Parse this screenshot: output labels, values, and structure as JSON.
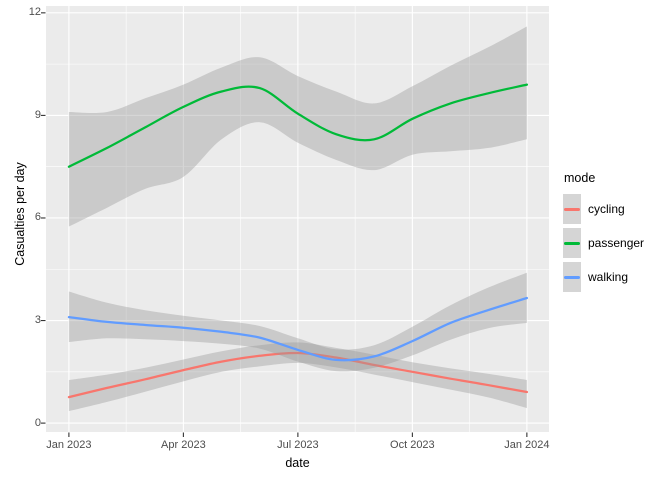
{
  "figure": {
    "background": "#FFFFFF",
    "panel_background": "#EBEBEB",
    "grid_color": "#FFFFFF",
    "tick_mark_color": "#333333",
    "tick_label_color": "#4D4D4D",
    "axis_title_color": "#000000",
    "ribbon_color": "#999999",
    "ribbon_opacity": 0.4,
    "legend_key_background": "#D5D5D5"
  },
  "chart_data": {
    "type": "line",
    "title": "",
    "xlabel": "date",
    "ylabel": "Casualties per day",
    "legend_title": "mode",
    "legend_position": "right",
    "grid": true,
    "smoothed": true,
    "confidence_band": true,
    "x_unit": "months since 2023-01-01",
    "x": [
      0,
      1,
      2,
      3,
      4,
      5,
      6,
      7,
      8,
      9,
      10,
      11,
      12
    ],
    "x_dates": [
      "2023-01",
      "2023-02",
      "2023-03",
      "2023-04",
      "2023-05",
      "2023-06",
      "2023-07",
      "2023-08",
      "2023-09",
      "2023-10",
      "2023-11",
      "2023-12",
      "2024-01"
    ],
    "x_ticks": [
      {
        "pos": 0,
        "label": "Jan 2023"
      },
      {
        "pos": 3,
        "label": "Apr 2023"
      },
      {
        "pos": 6,
        "label": "Jul 2023"
      },
      {
        "pos": 9,
        "label": "Oct 2023"
      },
      {
        "pos": 12,
        "label": "Jan 2024"
      }
    ],
    "x_minor_ticks": [
      1.5,
      4.5,
      7.5,
      10.5
    ],
    "y_ticks": [
      0,
      3,
      6,
      9,
      12
    ],
    "y_minor_ticks": [
      1.5,
      4.5,
      7.5,
      10.5
    ],
    "xlim": [
      -0.6,
      12.58
    ],
    "ylim": [
      -0.26,
      12.2
    ],
    "series": [
      {
        "name": "cycling",
        "color": "#F8766D",
        "y": [
          0.76,
          1.03,
          1.28,
          1.55,
          1.8,
          1.97,
          2.05,
          1.92,
          1.7,
          1.5,
          1.3,
          1.11,
          0.91
        ],
        "upper": [
          1.26,
          1.42,
          1.62,
          1.86,
          2.1,
          2.28,
          2.36,
          2.2,
          2.0,
          1.78,
          1.6,
          1.44,
          1.26
        ],
        "lower": [
          0.35,
          0.62,
          0.92,
          1.22,
          1.5,
          1.66,
          1.76,
          1.63,
          1.42,
          1.2,
          0.98,
          0.75,
          0.44
        ]
      },
      {
        "name": "passenger",
        "color": "#00BA38",
        "y": [
          7.5,
          8.05,
          8.65,
          9.25,
          9.7,
          9.8,
          9.05,
          8.45,
          8.3,
          8.9,
          9.35,
          9.65,
          9.9
        ],
        "upper": [
          9.1,
          9.1,
          9.5,
          9.9,
          10.4,
          10.7,
          10.15,
          9.7,
          9.35,
          9.85,
          10.45,
          11.0,
          11.6
        ],
        "lower": [
          5.75,
          6.3,
          6.85,
          7.2,
          8.3,
          8.8,
          8.2,
          7.7,
          7.4,
          7.85,
          7.95,
          8.05,
          8.3
        ]
      },
      {
        "name": "walking",
        "color": "#619CFF",
        "y": [
          3.1,
          2.96,
          2.87,
          2.79,
          2.67,
          2.5,
          2.14,
          1.85,
          1.95,
          2.4,
          2.93,
          3.31,
          3.66
        ],
        "upper": [
          3.85,
          3.52,
          3.3,
          3.14,
          3.0,
          2.84,
          2.48,
          2.16,
          2.28,
          2.82,
          3.45,
          3.97,
          4.4
        ],
        "lower": [
          2.37,
          2.48,
          2.45,
          2.4,
          2.32,
          2.18,
          1.8,
          1.52,
          1.62,
          1.98,
          2.44,
          2.78,
          2.93
        ]
      }
    ]
  }
}
